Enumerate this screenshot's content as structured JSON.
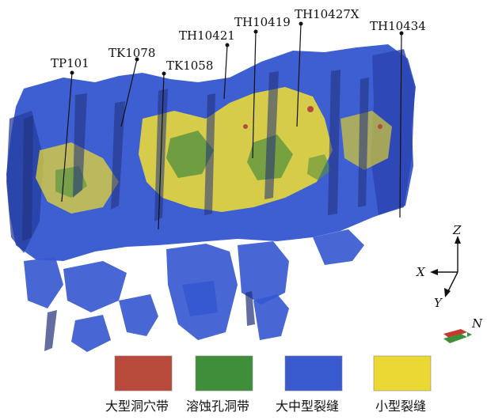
{
  "wells": [
    {
      "id": "tp101",
      "name": "TP101"
    },
    {
      "id": "tk1078",
      "name": "TK1078"
    },
    {
      "id": "tk1058",
      "name": "TK1058"
    },
    {
      "id": "th10421",
      "name": "TH10421"
    },
    {
      "id": "th10419",
      "name": "TH10419"
    },
    {
      "id": "th10427x",
      "name": "TH10427X"
    },
    {
      "id": "th10434",
      "name": "TH10434"
    }
  ],
  "axes": {
    "x": "X",
    "y": "Y",
    "z": "Z",
    "north": "N"
  },
  "legend": [
    {
      "id": "large-cave",
      "label": "大型洞穴带",
      "color": "#b84a3c"
    },
    {
      "id": "dissolution-pore",
      "label": "溶蚀孔洞带",
      "color": "#3f8f3a"
    },
    {
      "id": "large-medium-fracture",
      "label": "大中型裂缝",
      "color": "#3a5ad0"
    },
    {
      "id": "small-fracture",
      "label": "小型裂缝",
      "color": "#ecd833"
    }
  ],
  "colors": {
    "fracture_blue": "#2f4fc8",
    "fracture_dark": "#1f2f7a",
    "yellow": "#e8d83a",
    "green": "#3f8f3a"
  }
}
